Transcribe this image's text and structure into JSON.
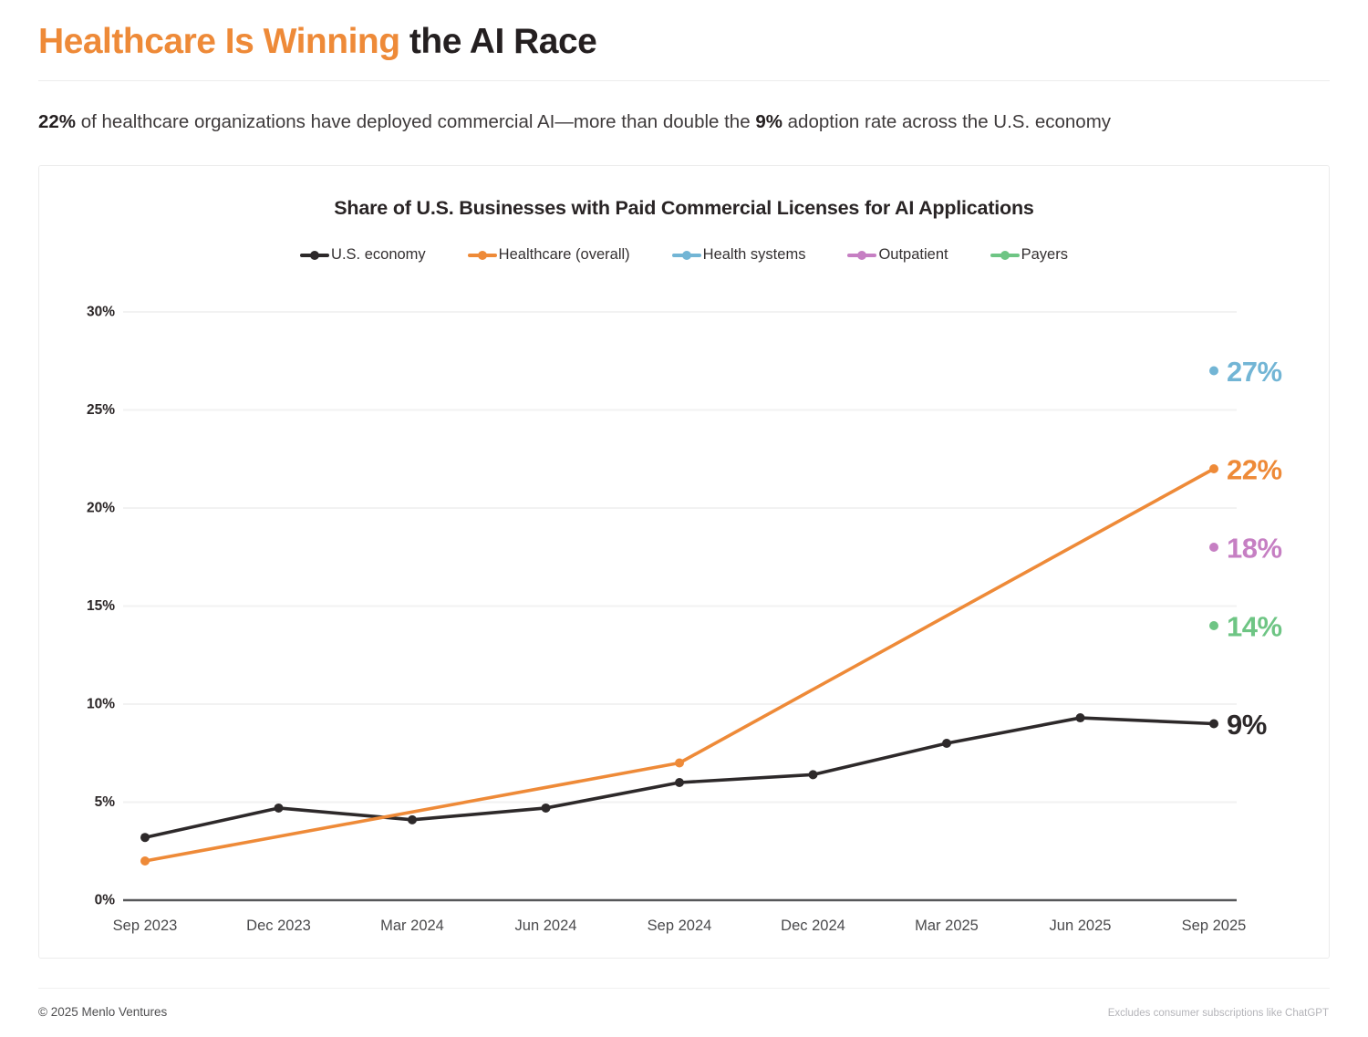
{
  "header": {
    "title_highlight": "Healthcare Is Winning",
    "title_rest": " the AI Race",
    "accent_color": "#ee8a38"
  },
  "subtitle": {
    "bold1": "22%",
    "text1": " of healthcare organizations have deployed commercial AI—more than double the ",
    "bold2": "9%",
    "text2": " adoption rate across the U.S. economy"
  },
  "chart_data": {
    "type": "line",
    "title": "Share of U.S. Businesses with Paid Commercial Licenses for AI Applications",
    "x": [
      "Sep 2023",
      "Dec 2023",
      "Mar 2024",
      "Jun 2024",
      "Sep 2024",
      "Dec 2024",
      "Mar 2025",
      "Jun 2025",
      "Sep 2025"
    ],
    "ylabel": "",
    "xlabel": "",
    "ylim": [
      0,
      30
    ],
    "ytick_step": 5,
    "ytick_suffix": "%",
    "grid": true,
    "legend_position": "top",
    "axis_color": "#565759",
    "grid_color": "#f2f2f2",
    "ytick_color": "#2b2627",
    "xtick_color": "#4a4a4c",
    "series": [
      {
        "name": "U.S. economy",
        "color": "#2d292a",
        "x_indices": [
          0,
          1,
          2,
          3,
          4,
          5,
          6,
          7,
          8
        ],
        "values": [
          3.2,
          4.7,
          4.1,
          4.7,
          6.0,
          6.4,
          8.0,
          9.3,
          9
        ],
        "end_label": "9%"
      },
      {
        "name": "Healthcare (overall)",
        "color": "#ee8a38",
        "x_indices": [
          0,
          4,
          8
        ],
        "values": [
          2.0,
          7.0,
          22
        ],
        "end_label": "22%"
      },
      {
        "name": "Health systems",
        "color": "#72b5d5",
        "x_indices": [
          8
        ],
        "values": [
          27
        ],
        "end_label": "27%"
      },
      {
        "name": "Outpatient",
        "color": "#c67fc3",
        "x_indices": [
          8
        ],
        "values": [
          18
        ],
        "end_label": "18%"
      },
      {
        "name": "Payers",
        "color": "#6ec584",
        "x_indices": [
          8
        ],
        "values": [
          14
        ],
        "end_label": "14%"
      }
    ]
  },
  "footer": {
    "copyright": "© 2025 Menlo Ventures",
    "note": "Excludes consumer subscriptions like ChatGPT"
  }
}
